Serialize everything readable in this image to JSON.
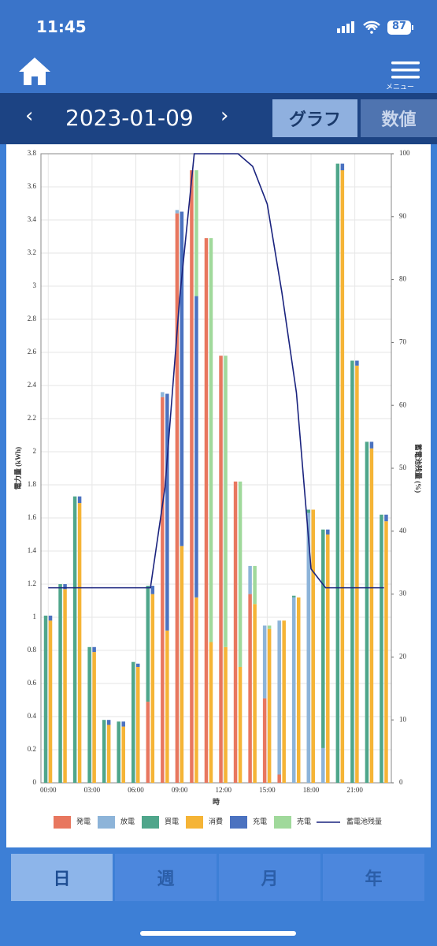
{
  "status_bar": {
    "time": "11:45",
    "battery": "87"
  },
  "header": {
    "menu_label": "メニュー"
  },
  "date_nav": {
    "date": "2023-01-09",
    "tabs": [
      "グラフ",
      "数値"
    ]
  },
  "chart_data": {
    "type": "bar",
    "y_label": "電力量 (kWh)",
    "y2_label": "蓄電池残量 (%)",
    "x_label": "時",
    "x": [
      0,
      1,
      2,
      3,
      4,
      5,
      6,
      7,
      8,
      9,
      10,
      11,
      12,
      13,
      14,
      15,
      16,
      17,
      18,
      19,
      20,
      21,
      22,
      23
    ],
    "xlim": [
      -0.5,
      23.5
    ],
    "xticks": [
      {
        "value": 0,
        "label": "00:00"
      },
      {
        "value": 3,
        "label": "03:00"
      },
      {
        "value": 6,
        "label": "06:00"
      },
      {
        "value": 9,
        "label": "09:00"
      },
      {
        "value": 12,
        "label": "12:00"
      },
      {
        "value": 15,
        "label": "15:00"
      },
      {
        "value": 18,
        "label": "18:00"
      },
      {
        "value": 21,
        "label": "21:00"
      }
    ],
    "ylim": [
      0,
      3.8
    ],
    "yticks": [
      0,
      0.2,
      0.4,
      0.6,
      0.8,
      1,
      1.2,
      1.4,
      1.6,
      1.8,
      2,
      2.2,
      2.4,
      2.6,
      2.8,
      3,
      3.2,
      3.4,
      3.6,
      3.8
    ],
    "y2lim": [
      0,
      100
    ],
    "y2ticks": [
      0,
      10,
      20,
      30,
      40,
      50,
      60,
      70,
      80,
      90,
      100
    ],
    "grid": true,
    "series": [
      {
        "name": "発電",
        "color": "#e8775f",
        "stack": "left",
        "values": [
          0,
          0,
          0,
          0,
          0,
          0,
          0,
          0.49,
          2.33,
          3.44,
          3.7,
          3.29,
          2.58,
          1.82,
          1.14,
          0.51,
          0.05,
          0,
          0,
          0,
          0,
          0,
          0,
          0
        ]
      },
      {
        "name": "放電",
        "color": "#8db4d9",
        "stack": "left",
        "values": [
          0,
          0,
          0,
          0,
          0,
          0,
          0,
          0,
          0.03,
          0.02,
          0,
          0,
          0,
          0,
          0.17,
          0.44,
          0.93,
          1.12,
          1.63,
          0.21,
          0,
          0,
          0,
          0
        ]
      },
      {
        "name": "買電",
        "color": "#4fa68b",
        "stack": "left",
        "values": [
          1.01,
          1.2,
          1.73,
          0.82,
          0.38,
          0.37,
          0.73,
          0.7,
          0,
          0,
          0,
          0,
          0,
          0,
          0,
          0,
          0,
          0.01,
          0.02,
          1.32,
          3.74,
          2.55,
          2.06,
          1.62
        ]
      },
      {
        "name": "消費",
        "color": "#f5b436",
        "stack": "right",
        "values": [
          0.98,
          1.17,
          1.69,
          0.79,
          0.35,
          0.34,
          0.7,
          1.14,
          0.92,
          1.43,
          1.12,
          0.85,
          0.82,
          0.7,
          1.08,
          0.93,
          0.98,
          1.12,
          1.65,
          1.5,
          3.7,
          2.52,
          2.02,
          1.58
        ]
      },
      {
        "name": "充電",
        "color": "#4b72c0",
        "stack": "right",
        "values": [
          0.03,
          0.03,
          0.04,
          0.03,
          0.03,
          0.03,
          0.02,
          0.05,
          1.43,
          2.02,
          1.82,
          0,
          0,
          0,
          0,
          0,
          0,
          0,
          0,
          0.03,
          0.04,
          0.03,
          0.04,
          0.04
        ]
      },
      {
        "name": "売電",
        "color": "#a0d99b",
        "stack": "right",
        "values": [
          0,
          0,
          0,
          0,
          0,
          0,
          0,
          0,
          0,
          0,
          0.76,
          2.44,
          1.76,
          1.12,
          0.23,
          0.02,
          0,
          0,
          0,
          0,
          0,
          0,
          0,
          0
        ]
      },
      {
        "name": "蓄電池残量",
        "color": "#1a237e",
        "type": "line",
        "axis": "y2",
        "values": [
          31,
          31,
          31,
          31,
          31,
          31,
          31,
          31,
          47,
          77,
          100,
          100,
          100,
          100,
          98,
          92,
          78,
          62,
          34,
          31,
          31,
          31,
          31,
          31
        ]
      }
    ]
  },
  "period_tabs": [
    "日",
    "週",
    "月",
    "年"
  ]
}
